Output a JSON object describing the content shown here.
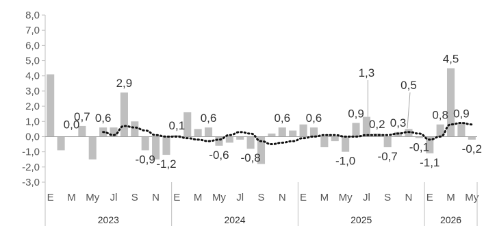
{
  "chart_data": {
    "type": "bar",
    "title": "",
    "xlabel": "",
    "ylabel": "",
    "ylim": [
      -3.0,
      8.0
    ],
    "yticks": [
      "8,0",
      "7,0",
      "6,0",
      "5,0",
      "4,0",
      "3,0",
      "2,0",
      "1,0",
      "0,0",
      "-1,0",
      "-2,0",
      "-3,0"
    ],
    "ytick_values": [
      8,
      7,
      6,
      5,
      4,
      3,
      2,
      1,
      0,
      -1,
      -2,
      -3
    ],
    "grid": false,
    "legend": "none",
    "years": [
      {
        "label": "2023",
        "start": 0,
        "end": 12
      },
      {
        "label": "2024",
        "start": 12,
        "end": 24
      },
      {
        "label": "2025",
        "start": 24,
        "end": 36
      },
      {
        "label": "2026",
        "start": 36,
        "end": 41
      }
    ],
    "x_tick_labels": [
      {
        "i": 0,
        "t": "E"
      },
      {
        "i": 2,
        "t": "M"
      },
      {
        "i": 4,
        "t": "My"
      },
      {
        "i": 6,
        "t": "Jl"
      },
      {
        "i": 8,
        "t": "S"
      },
      {
        "i": 10,
        "t": "N"
      },
      {
        "i": 12,
        "t": "E"
      },
      {
        "i": 14,
        "t": "M"
      },
      {
        "i": 16,
        "t": "My"
      },
      {
        "i": 18,
        "t": "Jl"
      },
      {
        "i": 20,
        "t": "S"
      },
      {
        "i": 22,
        "t": "N"
      },
      {
        "i": 24,
        "t": "E"
      },
      {
        "i": 26,
        "t": "M"
      },
      {
        "i": 28,
        "t": "My"
      },
      {
        "i": 30,
        "t": "Jl"
      },
      {
        "i": 32,
        "t": "S"
      },
      {
        "i": 34,
        "t": "N"
      },
      {
        "i": 36,
        "t": "E"
      },
      {
        "i": 38,
        "t": "M"
      },
      {
        "i": 40,
        "t": "My"
      }
    ],
    "series": [
      {
        "kind": "bar",
        "values": [
          4.1,
          -0.9,
          0.0,
          0.7,
          -1.5,
          0.6,
          0.6,
          2.9,
          1.0,
          -0.9,
          -1.5,
          -1.2,
          0.1,
          1.6,
          0.5,
          0.6,
          -0.6,
          -0.4,
          -0.2,
          -0.8,
          -1.8,
          0.2,
          0.6,
          0.4,
          0.8,
          0.6,
          -0.7,
          -0.3,
          -1.0,
          0.9,
          1.3,
          0.2,
          -0.7,
          0.3,
          0.5,
          -0.1,
          -1.1,
          0.8,
          4.5,
          0.9,
          -0.2
        ],
        "color": "#bfbfbf"
      },
      {
        "kind": "line",
        "style": "dotted",
        "values": [
          null,
          null,
          null,
          null,
          null,
          0.3,
          0.1,
          0.7,
          0.6,
          0.4,
          0.1,
          0.0,
          0.0,
          -0.1,
          -0.2,
          -0.3,
          -0.2,
          0.1,
          0.3,
          0.2,
          -0.3,
          -0.5,
          -0.4,
          -0.3,
          -0.1,
          0.0,
          0.1,
          0.1,
          0.0,
          0.0,
          0.1,
          0.1,
          0.1,
          0.2,
          0.3,
          0.2,
          -0.2,
          0.0,
          0.8,
          0.9,
          0.8
        ],
        "color": "#111111"
      }
    ],
    "data_labels": [
      {
        "i": 2,
        "t": "0,0"
      },
      {
        "i": 3,
        "t": "0,7"
      },
      {
        "i": 5,
        "t": "0,6"
      },
      {
        "i": 7,
        "t": "2,9"
      },
      {
        "i": 9,
        "t": "-0,9"
      },
      {
        "i": 11,
        "t": "-1,2"
      },
      {
        "i": 12,
        "t": "0,1"
      },
      {
        "i": 15,
        "t": "0,6"
      },
      {
        "i": 16,
        "t": "-0,6"
      },
      {
        "i": 19,
        "t": "-0,8"
      },
      {
        "i": 22,
        "t": "0,6"
      },
      {
        "i": 25,
        "t": "0,6"
      },
      {
        "i": 28,
        "t": "-1,0"
      },
      {
        "i": 29,
        "t": "0,9"
      },
      {
        "i": 30,
        "t": "1,3"
      },
      {
        "i": 31,
        "t": "0,2"
      },
      {
        "i": 32,
        "t": "-0,7"
      },
      {
        "i": 33,
        "t": "0,3"
      },
      {
        "i": 34,
        "t": "0,5"
      },
      {
        "i": 35,
        "t": "-0,1"
      },
      {
        "i": 36,
        "t": "-1,1"
      },
      {
        "i": 37,
        "t": "0,8"
      },
      {
        "i": 38,
        "t": "4,5"
      },
      {
        "i": 39,
        "t": "0,9"
      },
      {
        "i": 40,
        "t": "-0,2"
      }
    ]
  }
}
